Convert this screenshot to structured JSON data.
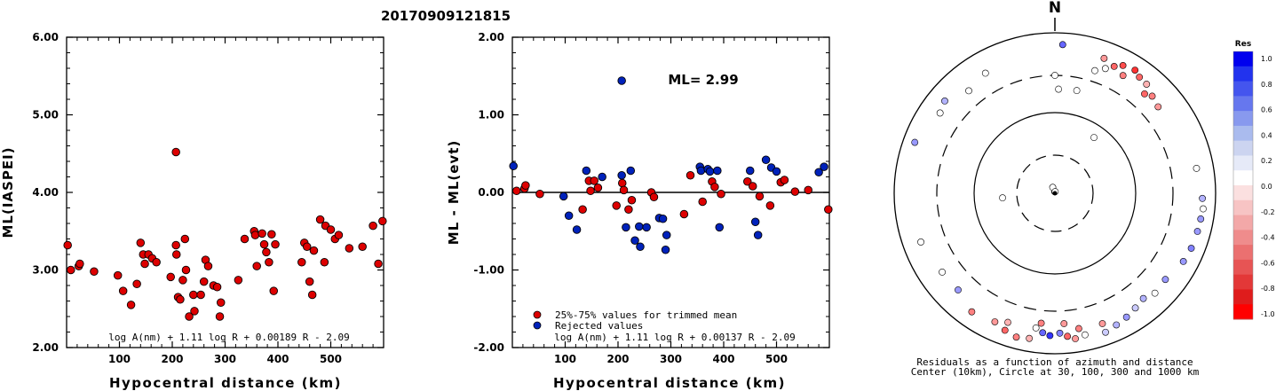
{
  "title": "20170909121815",
  "chart_data": [
    {
      "type": "scatter",
      "ylabel": "ML(IASPEI)",
      "xlabel": "Hypocentral distance (km)",
      "xlim": [
        0,
        600
      ],
      "ylim": [
        2.0,
        6.0
      ],
      "xticks": [
        "100",
        "200",
        "300",
        "400",
        "500"
      ],
      "yticks": [
        "2.00",
        "3.00",
        "4.00",
        "5.00",
        "6.00"
      ],
      "formula": "log A(nm) + 1.11 log R + 0.00189 R - 2.09",
      "series": [
        {
          "color": "#dd0000",
          "points": [
            [
              2,
              3.32
            ],
            [
              8,
              3.0
            ],
            [
              23,
              3.05
            ],
            [
              25,
              3.08
            ],
            [
              52,
              2.98
            ],
            [
              97,
              2.93
            ],
            [
              107,
              2.73
            ],
            [
              122,
              2.55
            ],
            [
              133,
              2.82
            ],
            [
              140,
              3.35
            ],
            [
              145,
              3.2
            ],
            [
              148,
              3.08
            ],
            [
              155,
              3.2
            ],
            [
              162,
              3.15
            ],
            [
              170,
              3.1
            ],
            [
              197,
              2.91
            ],
            [
              207,
              4.52
            ],
            [
              207,
              3.32
            ],
            [
              208,
              3.2
            ],
            [
              211,
              2.65
            ],
            [
              215,
              2.62
            ],
            [
              220,
              2.87
            ],
            [
              224,
              3.4
            ],
            [
              226,
              3.0
            ],
            [
              232,
              2.4
            ],
            [
              240,
              2.68
            ],
            [
              242,
              2.47
            ],
            [
              254,
              2.68
            ],
            [
              260,
              2.85
            ],
            [
              263,
              3.13
            ],
            [
              268,
              3.05
            ],
            [
              278,
              2.8
            ],
            [
              285,
              2.78
            ],
            [
              290,
              2.4
            ],
            [
              292,
              2.58
            ],
            [
              325,
              2.87
            ],
            [
              337,
              3.4
            ],
            [
              355,
              3.5
            ],
            [
              357,
              3.45
            ],
            [
              360,
              3.05
            ],
            [
              370,
              3.47
            ],
            [
              374,
              3.33
            ],
            [
              378,
              3.23
            ],
            [
              383,
              3.1
            ],
            [
              388,
              3.46
            ],
            [
              392,
              2.73
            ],
            [
              395,
              3.33
            ],
            [
              445,
              3.1
            ],
            [
              450,
              3.35
            ],
            [
              455,
              3.3
            ],
            [
              460,
              2.85
            ],
            [
              465,
              2.68
            ],
            [
              468,
              3.25
            ],
            [
              480,
              3.65
            ],
            [
              488,
              3.1
            ],
            [
              490,
              3.57
            ],
            [
              500,
              3.52
            ],
            [
              508,
              3.4
            ],
            [
              515,
              3.45
            ],
            [
              535,
              3.28
            ],
            [
              560,
              3.3
            ],
            [
              580,
              3.57
            ],
            [
              590,
              3.08
            ],
            [
              598,
              3.63
            ]
          ]
        }
      ]
    },
    {
      "type": "scatter",
      "ylabel": "ML - ML(evt)",
      "xlabel": "Hypocentral distance (km)",
      "xlim": [
        0,
        600
      ],
      "ylim": [
        -2.0,
        2.0
      ],
      "xticks": [
        "100",
        "200",
        "300",
        "400",
        "500"
      ],
      "yticks": [
        "-2.00",
        "-1.00",
        "0.00",
        "1.00",
        "2.00"
      ],
      "annotation": "ML= 2.99",
      "formula": "log A(nm) + 1.11 log R + 0.00137 R - 2.09",
      "legend": [
        "25%-75% values for trimmed mean",
        "Rejected values"
      ],
      "series": [
        {
          "name": "25%-75% values for trimmed mean",
          "color": "#dd0000",
          "points": [
            [
              8,
              0.02
            ],
            [
              23,
              0.05
            ],
            [
              25,
              0.09
            ],
            [
              52,
              -0.02
            ],
            [
              133,
              -0.22
            ],
            [
              145,
              0.15
            ],
            [
              148,
              0.02
            ],
            [
              155,
              0.15
            ],
            [
              162,
              0.06
            ],
            [
              197,
              -0.17
            ],
            [
              208,
              0.12
            ],
            [
              211,
              0.03
            ],
            [
              220,
              -0.22
            ],
            [
              226,
              -0.1
            ],
            [
              263,
              0.0
            ],
            [
              268,
              -0.06
            ],
            [
              325,
              -0.28
            ],
            [
              337,
              0.22
            ],
            [
              360,
              -0.12
            ],
            [
              378,
              0.14
            ],
            [
              383,
              0.07
            ],
            [
              395,
              -0.02
            ],
            [
              445,
              0.14
            ],
            [
              455,
              0.08
            ],
            [
              468,
              -0.05
            ],
            [
              488,
              -0.17
            ],
            [
              508,
              0.13
            ],
            [
              515,
              0.16
            ],
            [
              535,
              0.01
            ],
            [
              560,
              0.03
            ],
            [
              598,
              -0.22
            ]
          ]
        },
        {
          "name": "Rejected values",
          "color": "#0022bb",
          "points": [
            [
              2,
              0.34
            ],
            [
              97,
              -0.05
            ],
            [
              107,
              -0.3
            ],
            [
              122,
              -0.48
            ],
            [
              140,
              0.28
            ],
            [
              170,
              0.2
            ],
            [
              207,
              1.44
            ],
            [
              207,
              0.22
            ],
            [
              215,
              -0.45
            ],
            [
              224,
              0.28
            ],
            [
              232,
              -0.62
            ],
            [
              240,
              -0.44
            ],
            [
              242,
              -0.7
            ],
            [
              254,
              -0.45
            ],
            [
              278,
              -0.33
            ],
            [
              285,
              -0.34
            ],
            [
              290,
              -0.74
            ],
            [
              292,
              -0.55
            ],
            [
              355,
              0.33
            ],
            [
              357,
              0.28
            ],
            [
              370,
              0.3
            ],
            [
              374,
              0.27
            ],
            [
              388,
              0.28
            ],
            [
              392,
              -0.45
            ],
            [
              450,
              0.28
            ],
            [
              460,
              -0.38
            ],
            [
              465,
              -0.55
            ],
            [
              480,
              0.42
            ],
            [
              490,
              0.32
            ],
            [
              500,
              0.27
            ],
            [
              580,
              0.26
            ],
            [
              590,
              0.33
            ]
          ]
        }
      ]
    },
    {
      "type": "polar-scatter",
      "north_label": "N",
      "caption_1": "Residuals as a function of azimuth and distance",
      "caption_2": "Center (10km), Circle at 30, 100, 300 and 1000 km",
      "colorbar_title": "Res",
      "colorbar_ticks": [
        "1.0",
        "0.8",
        "0.6",
        "0.4",
        "0.2",
        "0.0",
        "-0.2",
        "-0.4",
        "-0.6",
        "-0.8",
        "-1.0"
      ],
      "colorbar_colors": [
        "#0000ee",
        "#2233ee",
        "#4455ee",
        "#6677ee",
        "#8899ee",
        "#aabbee",
        "#ccd4f0",
        "#e6eaf8",
        "#ffffff",
        "#fbe0e0",
        "#f7c4c4",
        "#f3a8a8",
        "#ef8c8c",
        "#eb7070",
        "#e75454",
        "#e33838",
        "#df1c1c",
        "#ff0000"
      ],
      "points": [
        {
          "az": 2,
          "dist": 200,
          "res": 0.0
        },
        {
          "az": 12,
          "dist": 205,
          "res": 0.0
        },
        {
          "az": 350,
          "dist": 8,
          "res": 0.0
        },
        {
          "az": 340,
          "dist": 12,
          "res": 0.0
        },
        {
          "az": 10,
          "dist": 10,
          "res": 0.0
        },
        {
          "az": 265,
          "dist": 45,
          "res": 0.0
        },
        {
          "az": 35,
          "dist": 70,
          "res": 0.0
        },
        {
          "az": 3,
          "dist": 720,
          "res": 0.6
        },
        {
          "az": 0,
          "dist": 300,
          "res": 0.0
        },
        {
          "az": 40,
          "dist": 600,
          "res": -0.3
        },
        {
          "az": 30,
          "dist": 500,
          "res": -0.5
        },
        {
          "az": 25,
          "dist": 560,
          "res": -0.6
        },
        {
          "az": 28,
          "dist": 640,
          "res": -0.7
        },
        {
          "az": 33,
          "dist": 680,
          "res": -0.8
        },
        {
          "az": 36,
          "dist": 620,
          "res": -0.6
        },
        {
          "az": 45,
          "dist": 520,
          "res": -0.5
        },
        {
          "az": 42,
          "dist": 470,
          "res": -0.6
        },
        {
          "az": 50,
          "dist": 480,
          "res": -0.4
        },
        {
          "az": 20,
          "dist": 620,
          "res": -0.4
        },
        {
          "az": 22,
          "dist": 480,
          "res": 0.0
        },
        {
          "az": 18,
          "dist": 410,
          "res": 0.0
        },
        {
          "az": 330,
          "dist": 540,
          "res": 0.0
        },
        {
          "az": 320,
          "dist": 470,
          "res": 0.0
        },
        {
          "az": 310,
          "dist": 620,
          "res": 0.3
        },
        {
          "az": 305,
          "dist": 560,
          "res": 0.0
        },
        {
          "az": 290,
          "dist": 720,
          "res": 0.4
        },
        {
          "az": 250,
          "dist": 600,
          "res": 0.0
        },
        {
          "az": 235,
          "dist": 520,
          "res": 0.0
        },
        {
          "az": 225,
          "dist": 510,
          "res": 0.4
        },
        {
          "az": 215,
          "dist": 640,
          "res": -0.5
        },
        {
          "az": 205,
          "dist": 590,
          "res": -0.4
        },
        {
          "az": 200,
          "dist": 660,
          "res": -0.6
        },
        {
          "az": 195,
          "dist": 720,
          "res": -0.5
        },
        {
          "az": 190,
          "dist": 690,
          "res": -0.3
        },
        {
          "az": 185,
          "dist": 560,
          "res": 0.6
        },
        {
          "az": 182,
          "dist": 600,
          "res": 0.8
        },
        {
          "az": 178,
          "dist": 560,
          "res": 0.5
        },
        {
          "az": 175,
          "dist": 620,
          "res": -0.6
        },
        {
          "az": 172,
          "dist": 680,
          "res": -0.4
        },
        {
          "az": 168,
          "dist": 640,
          "res": 0.0
        },
        {
          "az": 160,
          "dist": 700,
          "res": 0.2
        },
        {
          "az": 155,
          "dist": 650,
          "res": 0.3
        },
        {
          "az": 150,
          "dist": 610,
          "res": 0.4
        },
        {
          "az": 145,
          "dist": 560,
          "res": 0.2
        },
        {
          "az": 140,
          "dist": 520,
          "res": 0.3
        },
        {
          "az": 135,
          "dist": 580,
          "res": 0.0
        },
        {
          "az": 128,
          "dist": 560,
          "res": 0.4
        },
        {
          "az": 118,
          "dist": 650,
          "res": 0.4
        },
        {
          "az": 112,
          "dist": 680,
          "res": 0.5
        },
        {
          "az": 105,
          "dist": 690,
          "res": 0.4
        },
        {
          "az": 100,
          "dist": 700,
          "res": 0.4
        },
        {
          "az": 96,
          "dist": 720,
          "res": 0.0
        },
        {
          "az": 92,
          "dist": 690,
          "res": 0.3
        },
        {
          "az": 80,
          "dist": 620,
          "res": 0.0
        },
        {
          "az": 186,
          "dist": 430,
          "res": -0.5
        },
        {
          "az": 176,
          "dist": 430,
          "res": -0.4
        },
        {
          "az": 188,
          "dist": 500,
          "res": 0.0
        },
        {
          "az": 170,
          "dist": 520,
          "res": -0.5
        },
        {
          "az": 160,
          "dist": 540,
          "res": -0.4
        },
        {
          "az": 200,
          "dist": 520,
          "res": -0.3
        }
      ]
    }
  ]
}
